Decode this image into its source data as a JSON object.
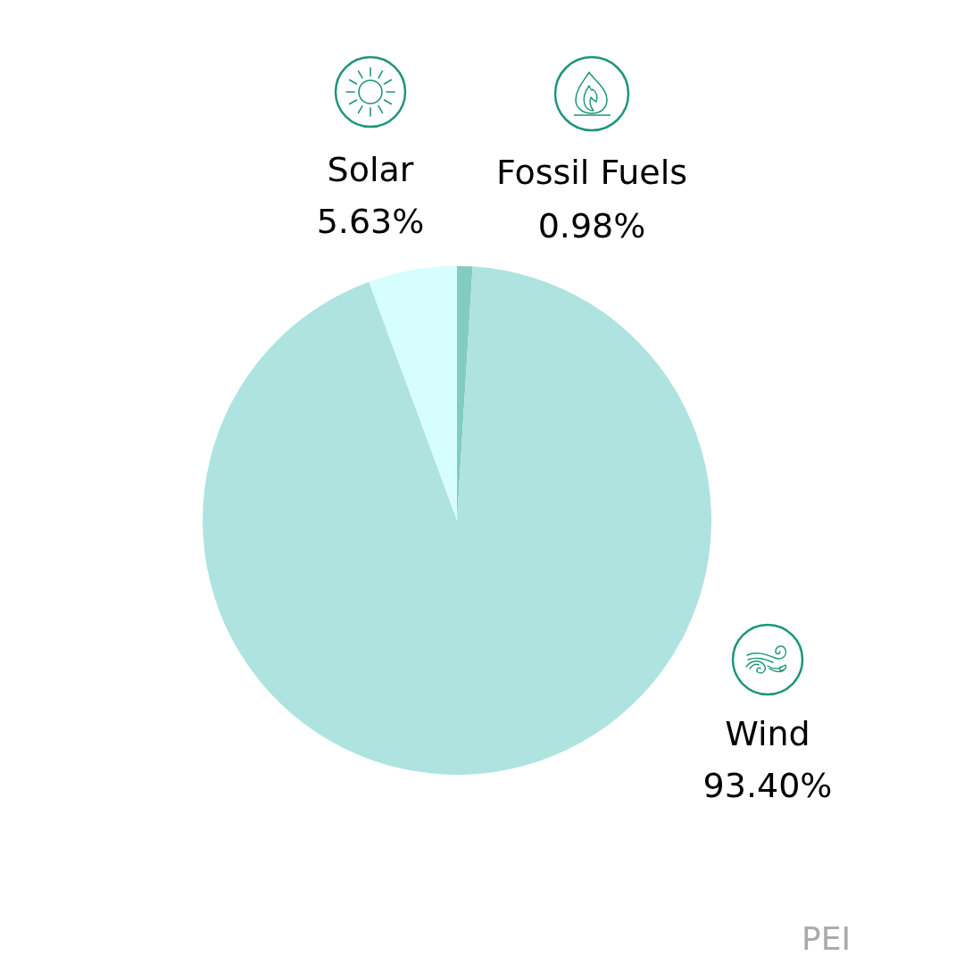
{
  "chart_data": {
    "type": "pie",
    "categories": [
      "Fossil Fuels",
      "Wind",
      "Solar"
    ],
    "values": [
      0.98,
      93.4,
      5.63
    ],
    "value_labels": [
      "0.98%",
      "93.40%",
      "5.63%"
    ],
    "colors": [
      "#84cbc0",
      "#aee3e0",
      "#d6fefd"
    ],
    "annotations": [
      "PEI"
    ]
  }
}
